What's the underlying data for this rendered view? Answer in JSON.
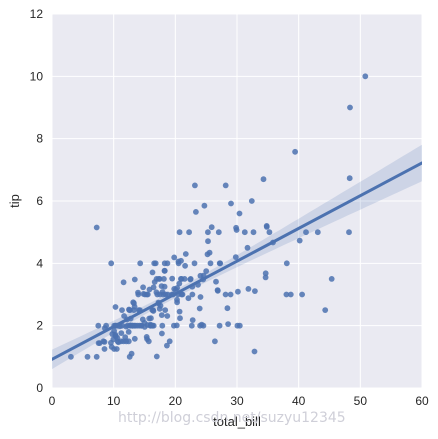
{
  "chart_data": {
    "type": "scatter",
    "xlabel": "total_bill",
    "ylabel": "tip",
    "xlim": [
      0,
      60
    ],
    "ylim": [
      0,
      12
    ],
    "x_ticks": [
      "0",
      "10",
      "20",
      "30",
      "40",
      "50",
      "60"
    ],
    "y_ticks": [
      "0",
      "2",
      "4",
      "6",
      "8",
      "10",
      "12"
    ],
    "grid": true,
    "regression": {
      "intercept": 0.92,
      "slope": 0.105,
      "x_range": [
        0,
        60
      ]
    },
    "colors": {
      "background": "#eaeaf2",
      "grid": "#ffffff",
      "points": "#4c72b0",
      "line": "#4c72b0",
      "band": "#4c72b0"
    },
    "points": [
      [
        3.07,
        1.0
      ],
      [
        5.75,
        1.0
      ],
      [
        7.25,
        1.0
      ],
      [
        7.25,
        5.15
      ],
      [
        7.51,
        2.0
      ],
      [
        7.56,
        1.44
      ],
      [
        7.74,
        1.44
      ],
      [
        8.35,
        1.5
      ],
      [
        8.51,
        1.25
      ],
      [
        8.52,
        1.48
      ],
      [
        8.58,
        1.92
      ],
      [
        8.77,
        2.0
      ],
      [
        9.55,
        1.45
      ],
      [
        9.6,
        4.0
      ],
      [
        9.68,
        1.32
      ],
      [
        9.78,
        1.73
      ],
      [
        9.94,
        1.56
      ],
      [
        10.07,
        1.25
      ],
      [
        10.07,
        1.83
      ],
      [
        10.09,
        2.0
      ],
      [
        10.27,
        1.71
      ],
      [
        10.29,
        2.6
      ],
      [
        10.33,
        1.67
      ],
      [
        10.33,
        2.0
      ],
      [
        10.34,
        1.66
      ],
      [
        10.34,
        2.0
      ],
      [
        10.51,
        1.25
      ],
      [
        10.59,
        1.61
      ],
      [
        10.63,
        2.0
      ],
      [
        10.65,
        1.5
      ],
      [
        10.77,
        1.47
      ],
      [
        11.02,
        1.98
      ],
      [
        11.17,
        1.5
      ],
      [
        11.24,
        1.76
      ],
      [
        11.35,
        2.5
      ],
      [
        11.38,
        2.0
      ],
      [
        11.59,
        1.5
      ],
      [
        11.61,
        3.39
      ],
      [
        11.69,
        2.31
      ],
      [
        11.87,
        1.63
      ],
      [
        12.02,
        1.97
      ],
      [
        12.03,
        1.5
      ],
      [
        12.16,
        2.2
      ],
      [
        12.26,
        2.0
      ],
      [
        12.43,
        1.8
      ],
      [
        12.46,
        1.5
      ],
      [
        12.48,
        2.52
      ],
      [
        12.54,
        2.5
      ],
      [
        12.6,
        1.0
      ],
      [
        12.66,
        2.5
      ],
      [
        12.69,
        2.0
      ],
      [
        12.74,
        2.01
      ],
      [
        12.76,
        2.23
      ],
      [
        12.9,
        1.1
      ],
      [
        13.0,
        2.0
      ],
      [
        13.03,
        2.0
      ],
      [
        13.13,
        2.0
      ],
      [
        13.16,
        2.75
      ],
      [
        13.27,
        2.5
      ],
      [
        13.28,
        2.72
      ],
      [
        13.37,
        2.0
      ],
      [
        13.39,
        2.61
      ],
      [
        13.42,
        1.58
      ],
      [
        13.42,
        3.48
      ],
      [
        13.51,
        2.0
      ],
      [
        13.81,
        2.0
      ],
      [
        13.94,
        3.06
      ],
      [
        14.0,
        3.0
      ],
      [
        14.07,
        2.5
      ],
      [
        14.15,
        2.0
      ],
      [
        14.26,
        2.5
      ],
      [
        14.31,
        4.0
      ],
      [
        14.48,
        2.0
      ],
      [
        14.52,
        2.0
      ],
      [
        14.73,
        2.2
      ],
      [
        14.78,
        3.23
      ],
      [
        14.83,
        3.02
      ],
      [
        15.01,
        2.09
      ],
      [
        15.04,
        1.96
      ],
      [
        15.06,
        3.0
      ],
      [
        15.36,
        1.64
      ],
      [
        15.38,
        3.0
      ],
      [
        15.42,
        1.57
      ],
      [
        15.48,
        2.02
      ],
      [
        15.53,
        3.0
      ],
      [
        15.69,
        1.5
      ],
      [
        15.77,
        2.23
      ],
      [
        15.81,
        3.16
      ],
      [
        15.95,
        2.0
      ],
      [
        15.98,
        2.03
      ],
      [
        16.0,
        2.0
      ],
      [
        16.04,
        2.24
      ],
      [
        16.21,
        2.0
      ],
      [
        16.27,
        2.5
      ],
      [
        16.29,
        3.71
      ],
      [
        16.31,
        2.0
      ],
      [
        16.4,
        2.5
      ],
      [
        16.45,
        2.47
      ],
      [
        16.47,
        3.23
      ],
      [
        16.49,
        2.0
      ],
      [
        16.58,
        4.0
      ],
      [
        16.66,
        3.4
      ],
      [
        16.82,
        4.0
      ],
      [
        16.93,
        3.07
      ],
      [
        16.97,
        3.5
      ],
      [
        16.99,
        1.01
      ],
      [
        17.07,
        3.0
      ],
      [
        17.26,
        2.74
      ],
      [
        17.29,
        2.71
      ],
      [
        17.31,
        3.5
      ],
      [
        17.46,
        2.54
      ],
      [
        17.47,
        3.5
      ],
      [
        17.51,
        3.0
      ],
      [
        17.59,
        2.64
      ],
      [
        17.78,
        3.27
      ],
      [
        17.81,
        2.34
      ],
      [
        17.82,
        1.75
      ],
      [
        17.89,
        2.0
      ],
      [
        17.92,
        3.08
      ],
      [
        18.04,
        3.0
      ],
      [
        18.15,
        3.5
      ],
      [
        18.24,
        3.76
      ],
      [
        18.26,
        3.25
      ],
      [
        18.28,
        4.0
      ],
      [
        18.29,
        3.76
      ],
      [
        18.35,
        2.5
      ],
      [
        18.43,
        3.0
      ],
      [
        18.64,
        1.36
      ],
      [
        18.69,
        2.31
      ],
      [
        18.71,
        4.0
      ],
      [
        18.78,
        3.0
      ],
      [
        19.08,
        1.5
      ],
      [
        19.44,
        3.0
      ],
      [
        19.49,
        3.51
      ],
      [
        19.65,
        3.0
      ],
      [
        19.77,
        2.0
      ],
      [
        19.81,
        4.19
      ],
      [
        19.82,
        3.18
      ],
      [
        20.08,
        3.15
      ],
      [
        20.23,
        2.01
      ],
      [
        20.27,
        2.83
      ],
      [
        20.29,
        2.75
      ],
      [
        20.29,
        3.21
      ],
      [
        20.45,
        3.0
      ],
      [
        20.49,
        4.06
      ],
      [
        20.53,
        4.0
      ],
      [
        20.65,
        3.35
      ],
      [
        20.69,
        2.45
      ],
      [
        20.69,
        5.0
      ],
      [
        20.76,
        2.24
      ],
      [
        20.9,
        3.5
      ],
      [
        20.92,
        4.08
      ],
      [
        21.01,
        3.5
      ],
      [
        21.01,
        3.0
      ],
      [
        21.16,
        3.0
      ],
      [
        21.5,
        3.5
      ],
      [
        21.58,
        3.92
      ],
      [
        21.7,
        4.3
      ],
      [
        22.12,
        2.88
      ],
      [
        22.23,
        5.0
      ],
      [
        22.42,
        3.48
      ],
      [
        22.49,
        3.5
      ],
      [
        22.67,
        2.0
      ],
      [
        22.75,
        3.25
      ],
      [
        22.76,
        3.0
      ],
      [
        22.82,
        2.18
      ],
      [
        23.1,
        4.0
      ],
      [
        23.17,
        6.5
      ],
      [
        23.33,
        5.65
      ],
      [
        23.68,
        3.31
      ],
      [
        23.95,
        2.55
      ],
      [
        24.01,
        2.0
      ],
      [
        24.06,
        3.6
      ],
      [
        24.08,
        2.92
      ],
      [
        24.27,
        2.03
      ],
      [
        24.52,
        3.48
      ],
      [
        24.55,
        2.0
      ],
      [
        24.59,
        3.61
      ],
      [
        24.71,
        5.85
      ],
      [
        25.0,
        3.75
      ],
      [
        25.21,
        4.29
      ],
      [
        25.28,
        5.0
      ],
      [
        25.29,
        4.71
      ],
      [
        25.56,
        4.34
      ],
      [
        25.71,
        4.0
      ],
      [
        25.89,
        5.16
      ],
      [
        26.41,
        1.5
      ],
      [
        26.59,
        3.41
      ],
      [
        26.86,
        3.14
      ],
      [
        26.88,
        3.12
      ],
      [
        27.05,
        5.0
      ],
      [
        27.18,
        2.0
      ],
      [
        27.2,
        4.0
      ],
      [
        27.28,
        4.0
      ],
      [
        28.15,
        3.0
      ],
      [
        28.17,
        6.5
      ],
      [
        28.44,
        2.56
      ],
      [
        28.55,
        2.05
      ],
      [
        28.97,
        3.0
      ],
      [
        29.03,
        5.92
      ],
      [
        29.8,
        4.2
      ],
      [
        29.85,
        5.14
      ],
      [
        29.93,
        5.07
      ],
      [
        30.06,
        2.0
      ],
      [
        30.14,
        3.09
      ],
      [
        30.4,
        5.6
      ],
      [
        30.46,
        2.0
      ],
      [
        31.27,
        5.0
      ],
      [
        31.71,
        4.5
      ],
      [
        31.85,
        3.18
      ],
      [
        32.4,
        6.0
      ],
      [
        32.68,
        5.0
      ],
      [
        32.83,
        1.17
      ],
      [
        32.9,
        3.11
      ],
      [
        34.3,
        6.7
      ],
      [
        34.63,
        3.55
      ],
      [
        34.65,
        3.68
      ],
      [
        34.81,
        5.2
      ],
      [
        34.83,
        5.17
      ],
      [
        35.26,
        5.0
      ],
      [
        35.83,
        4.67
      ],
      [
        38.01,
        3.0
      ],
      [
        38.07,
        4.0
      ],
      [
        38.73,
        3.0
      ],
      [
        39.42,
        7.58
      ],
      [
        40.17,
        4.73
      ],
      [
        40.55,
        3.0
      ],
      [
        41.19,
        5.0
      ],
      [
        43.11,
        5.0
      ],
      [
        44.3,
        2.5
      ],
      [
        45.35,
        3.5
      ],
      [
        48.17,
        5.0
      ],
      [
        48.27,
        6.73
      ],
      [
        48.33,
        9.0
      ],
      [
        50.81,
        10.0
      ]
    ],
    "watermark": "http://blog.csdn.net/suzyu12345"
  }
}
